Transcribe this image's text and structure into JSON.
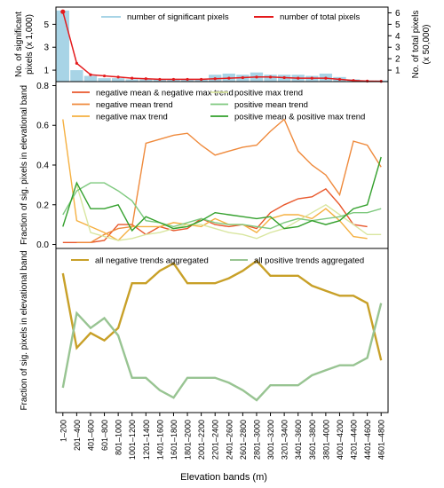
{
  "figure": {
    "xlabel": "Elevation bands (m)",
    "categories": [
      "1–200",
      "201–400",
      "401–600",
      "601–800",
      "801–1000",
      "1001–1200",
      "1201–1400",
      "1401–1600",
      "1601–1800",
      "1801–2000",
      "2001–2200",
      "2201–2400",
      "2401–2600",
      "2601–2800",
      "2801–3000",
      "3001–3200",
      "3201–3400",
      "3401–3600",
      "3601–3800",
      "3801–4000",
      "4001–4200",
      "4201–4400",
      "4401–4600",
      "4601–4800"
    ]
  },
  "chart_data": [
    {
      "type": "bar",
      "panel": "top",
      "ylabel": "No. of significant pixels (x 1,000)",
      "ylabel_lines": [
        "No. of significant",
        "pixels (x 1,000)"
      ],
      "ylim": [
        0,
        6.5
      ],
      "yticks": [
        1,
        3,
        5
      ],
      "y2label": "No. of total pixels (x 50,000)",
      "y2label_lines": [
        "No. of total pixels",
        "(x 50,000)"
      ],
      "y2lim": [
        0,
        6.5
      ],
      "y2ticks": [
        1,
        2,
        3,
        4,
        5,
        6
      ],
      "legend": [
        "number of significant pixels",
        "number of total pixels"
      ],
      "series": [
        {
          "name": "number of significant pixels",
          "kind": "bar",
          "color": "#a8d4e6",
          "values": [
            6.2,
            1.0,
            0.5,
            0.3,
            0.3,
            0.2,
            0.2,
            0.2,
            0.2,
            0.2,
            0.2,
            0.6,
            0.7,
            0.6,
            0.8,
            0.6,
            0.6,
            0.6,
            0.5,
            0.7,
            0.4,
            0.2,
            0.1,
            0.1
          ]
        },
        {
          "name": "number of total pixels",
          "kind": "line",
          "color": "#e41a1c",
          "values": [
            6.1,
            1.6,
            0.6,
            0.5,
            0.4,
            0.3,
            0.25,
            0.2,
            0.2,
            0.2,
            0.2,
            0.25,
            0.3,
            0.35,
            0.4,
            0.4,
            0.35,
            0.3,
            0.3,
            0.3,
            0.2,
            0.1,
            0.05,
            0.03
          ]
        }
      ]
    },
    {
      "type": "line",
      "panel": "middle",
      "ylabel": "Fraction of sig. pixels in elevational band",
      "ylim": [
        -0.02,
        0.82
      ],
      "yticks": [
        "0.0",
        "0.2",
        "0.4",
        "0.6",
        "0.8"
      ],
      "series": [
        {
          "name": "negative mean & negative max trend",
          "color": "#e8572b",
          "values": [
            0.01,
            0.01,
            0.01,
            0.02,
            0.1,
            0.1,
            0.05,
            0.09,
            0.07,
            0.08,
            0.13,
            0.1,
            0.09,
            0.1,
            0.08,
            0.16,
            0.2,
            0.23,
            0.24,
            0.28,
            0.2,
            0.1,
            0.09,
            null
          ]
        },
        {
          "name": "negative mean trend",
          "color": "#ef8a3c",
          "values": [
            null,
            0.01,
            0.01,
            0.05,
            0.08,
            0.09,
            0.51,
            0.53,
            0.55,
            0.56,
            0.5,
            0.45,
            0.47,
            0.49,
            0.5,
            0.57,
            0.63,
            0.47,
            0.4,
            0.35,
            0.25,
            0.52,
            0.5,
            0.39
          ]
        },
        {
          "name": "negative max trend",
          "color": "#f5b041",
          "values": [
            0.63,
            0.12,
            0.09,
            0.06,
            0.02,
            0.09,
            0.09,
            0.09,
            0.11,
            0.1,
            0.09,
            0.13,
            0.1,
            0.1,
            0.06,
            0.13,
            0.15,
            0.15,
            0.13,
            0.18,
            0.12,
            0.04,
            0.03,
            null
          ]
        },
        {
          "name": "positive max trend",
          "color": "#d9e6a0",
          "values": [
            null,
            0.3,
            0.06,
            0.04,
            0.02,
            0.03,
            0.05,
            0.06,
            0.08,
            0.1,
            0.1,
            0.08,
            0.06,
            0.05,
            0.03,
            0.06,
            0.08,
            0.12,
            0.16,
            0.2,
            0.15,
            0.1,
            0.05,
            0.05
          ]
        },
        {
          "name": "positive mean trend",
          "color": "#7fc97f",
          "values": [
            0.15,
            0.27,
            0.31,
            0.31,
            0.27,
            0.22,
            0.12,
            0.11,
            0.09,
            0.11,
            0.13,
            0.11,
            0.1,
            0.1,
            0.09,
            0.08,
            0.11,
            0.13,
            0.12,
            0.13,
            0.14,
            0.16,
            0.16,
            0.18
          ]
        },
        {
          "name": "positive mean & positive max trend",
          "color": "#33a02c",
          "values": [
            0.09,
            0.31,
            0.18,
            0.18,
            0.2,
            0.07,
            0.14,
            0.11,
            0.08,
            0.09,
            0.12,
            0.16,
            0.15,
            0.14,
            0.13,
            0.14,
            0.08,
            0.09,
            0.12,
            0.1,
            0.12,
            0.18,
            0.2,
            0.44
          ]
        }
      ]
    },
    {
      "type": "line",
      "panel": "bottom",
      "ylabel": "Fraction of sig. pixels in elevational band",
      "ylim": [
        0.17,
        0.83
      ],
      "yticks": [],
      "series": [
        {
          "name": "all negative trends aggregated",
          "color": "#c8a028",
          "values": [
            0.73,
            0.43,
            0.49,
            0.46,
            0.51,
            0.69,
            0.69,
            0.74,
            0.77,
            0.69,
            0.69,
            0.69,
            0.71,
            0.74,
            0.78,
            0.72,
            0.72,
            0.72,
            0.68,
            0.66,
            0.64,
            0.64,
            0.61,
            0.38
          ]
        },
        {
          "name": "all positive trends aggregated",
          "color": "#98c492",
          "values": [
            0.27,
            0.57,
            0.51,
            0.55,
            0.48,
            0.31,
            0.31,
            0.26,
            0.23,
            0.31,
            0.31,
            0.31,
            0.29,
            0.26,
            0.22,
            0.28,
            0.28,
            0.28,
            0.32,
            0.34,
            0.36,
            0.36,
            0.39,
            0.61
          ]
        }
      ]
    }
  ]
}
